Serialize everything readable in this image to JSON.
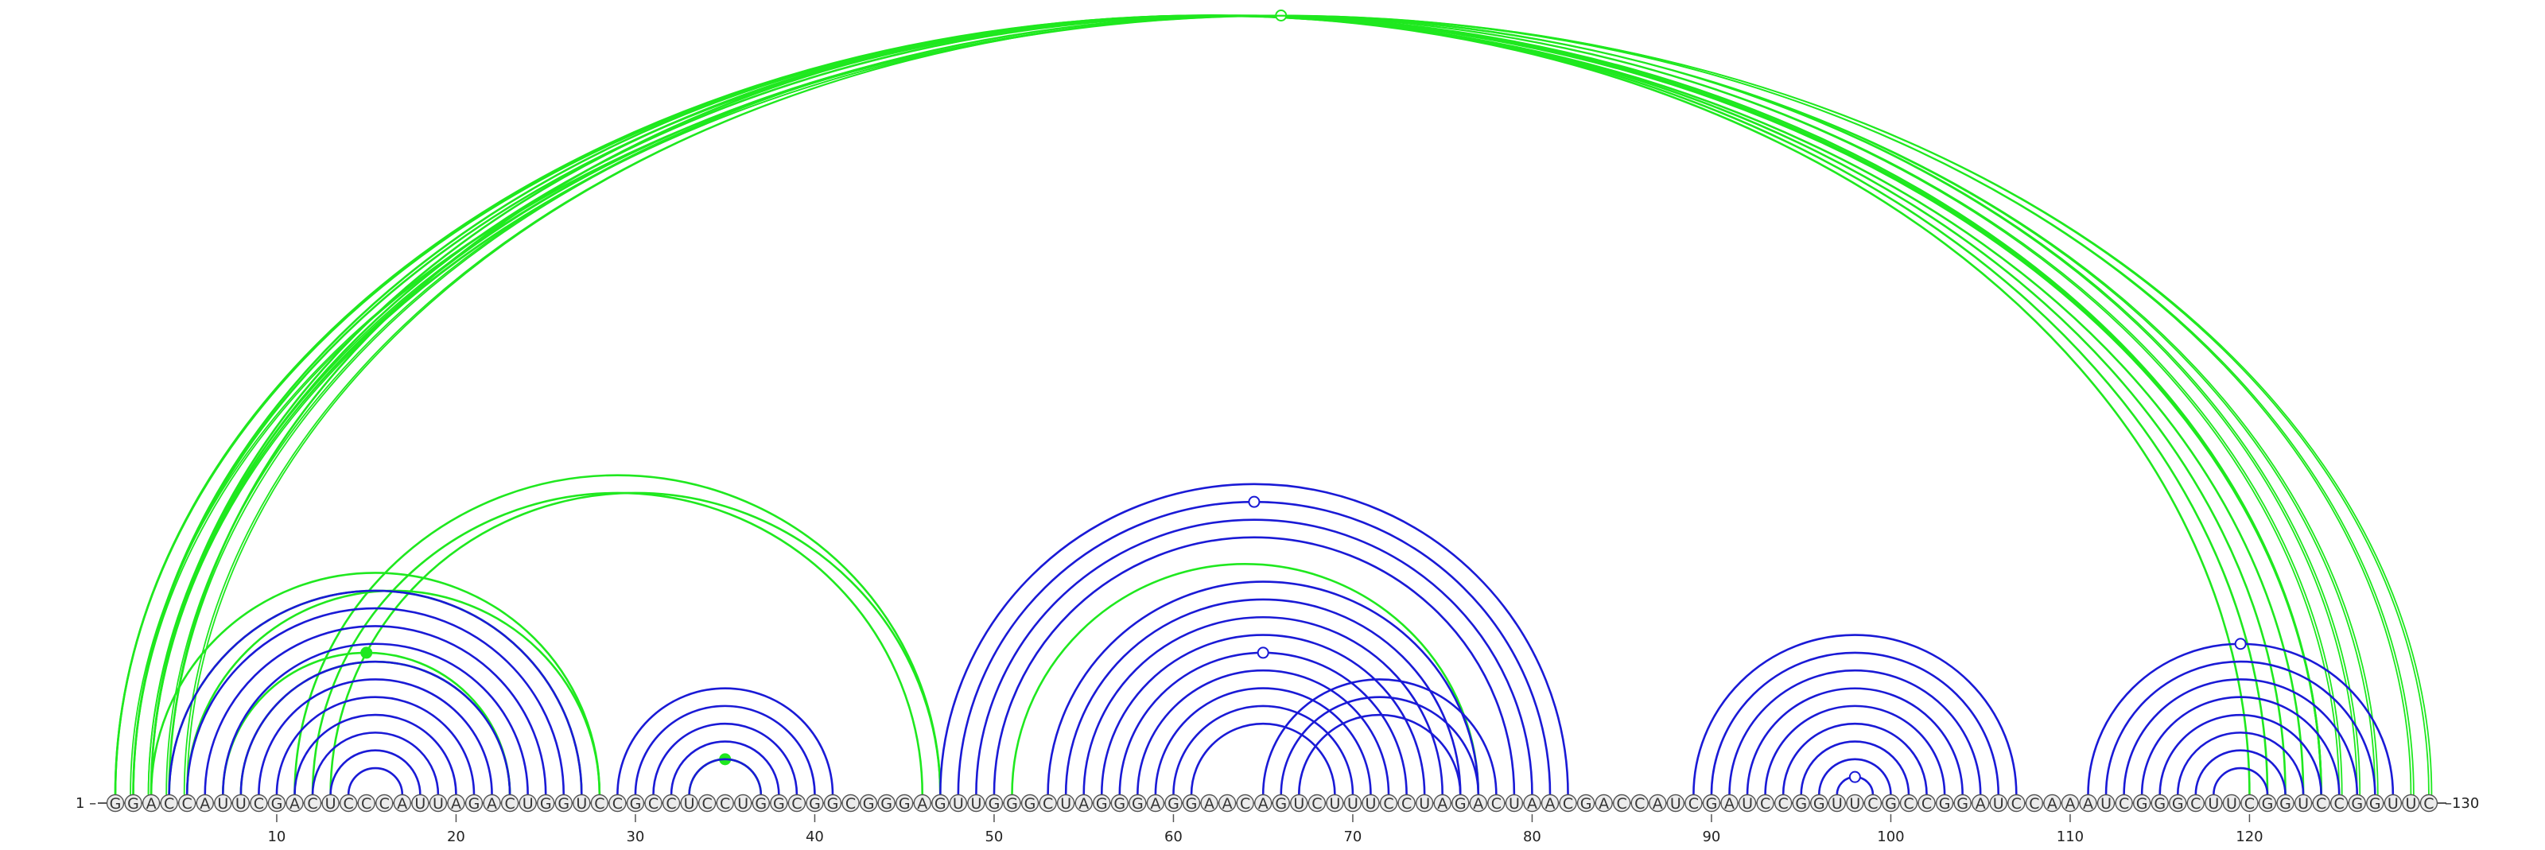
{
  "sequence": "GGACCAUUCGACUCCCAUUAGACUGGUCCGCCUCCUGGCGGCGGGAGUUGGGCUAGGGAGGAACAGUCUUUCCUAGACUAACGACCAUCGAUCCGGUUCGCCGGAUCCAAAUCGGGCUUCGGUCCGGUUC",
  "start_label": "1",
  "end_label": "130",
  "ticks": [
    10,
    20,
    30,
    40,
    50,
    60,
    70,
    80,
    90,
    100,
    110,
    120
  ],
  "colors": {
    "blue": "#1a1ad6",
    "green": "#1fe81f",
    "nucleotide_fill": "#ececec",
    "nucleotide_stroke": "#555555"
  },
  "arc_groups": [
    {
      "color": "green",
      "pairs": [
        [
          1,
          123
        ],
        [
          2,
          122
        ],
        [
          3,
          121
        ],
        [
          4,
          120
        ]
      ]
    },
    {
      "color": "green",
      "pairs": [
        [
          1,
          124
        ],
        [
          2,
          124
        ],
        [
          3,
          124
        ]
      ]
    },
    {
      "color": "green",
      "pairs": [
        [
          4,
          125
        ],
        [
          5,
          126
        ],
        [
          3,
          127
        ]
      ],
      "thin": true
    },
    {
      "color": "green",
      "pairs": [
        [
          2,
          130
        ],
        [
          3,
          129
        ]
      ],
      "thin": true,
      "marker_hollow": true
    },
    {
      "color": "green",
      "pairs": [
        [
          3,
          28
        ],
        [
          4,
          27
        ],
        [
          5,
          28
        ]
      ]
    },
    {
      "color": "green",
      "pairs": [
        [
          13,
          47
        ],
        [
          12,
          46
        ],
        [
          11,
          47
        ]
      ]
    },
    {
      "color": "green",
      "pairs": [
        [
          7,
          23
        ],
        [
          8,
          23
        ]
      ],
      "marker_filled": true
    },
    {
      "color": "green",
      "pairs": [
        [
          33,
          37
        ]
      ],
      "marker_filled": true
    },
    {
      "color": "green",
      "pairs": [
        [
          51,
          77
        ]
      ]
    },
    {
      "color": "blue",
      "pairs": [
        [
          4,
          27
        ],
        [
          5,
          26
        ],
        [
          6,
          25
        ],
        [
          7,
          24
        ],
        [
          8,
          23
        ],
        [
          9,
          22
        ],
        [
          10,
          21
        ],
        [
          11,
          20
        ],
        [
          12,
          19
        ],
        [
          13,
          18
        ],
        [
          14,
          17
        ]
      ]
    },
    {
      "color": "blue",
      "pairs": [
        [
          29,
          41
        ],
        [
          30,
          40
        ],
        [
          31,
          39
        ],
        [
          32,
          38
        ],
        [
          33,
          37
        ]
      ]
    },
    {
      "color": "blue",
      "pairs": [
        [
          47,
          82
        ],
        [
          48,
          81
        ],
        [
          49,
          80
        ],
        [
          50,
          79
        ]
      ],
      "marker_hollow_index": 1
    },
    {
      "color": "blue",
      "pairs": [
        [
          53,
          77
        ],
        [
          54,
          76
        ],
        [
          55,
          75
        ],
        [
          56,
          74
        ],
        [
          57,
          73
        ],
        [
          58,
          72
        ],
        [
          59,
          71
        ],
        [
          60,
          70
        ],
        [
          61,
          69
        ]
      ],
      "marker_hollow_index": 4
    },
    {
      "color": "blue",
      "pairs": [
        [
          65,
          78
        ],
        [
          66,
          77
        ],
        [
          67,
          76
        ]
      ]
    },
    {
      "color": "blue",
      "pairs": [
        [
          89,
          107
        ],
        [
          90,
          106
        ],
        [
          91,
          105
        ],
        [
          92,
          104
        ],
        [
          93,
          103
        ],
        [
          94,
          102
        ],
        [
          95,
          101
        ],
        [
          96,
          100
        ],
        [
          97,
          99
        ]
      ],
      "marker_hollow_index": 8
    },
    {
      "color": "blue",
      "pairs": [
        [
          111,
          128
        ],
        [
          112,
          127
        ],
        [
          113,
          126
        ],
        [
          114,
          125
        ],
        [
          115,
          124
        ],
        [
          116,
          123
        ],
        [
          117,
          122
        ],
        [
          118,
          121
        ]
      ],
      "marker_hollow_index": 0
    }
  ]
}
